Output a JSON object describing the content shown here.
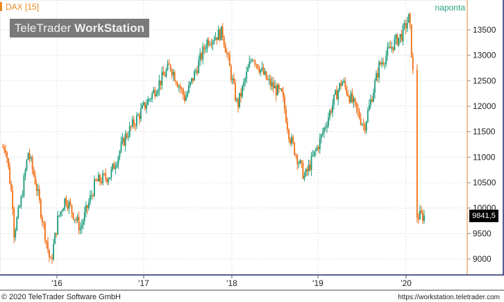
{
  "header": {
    "instrument": "DAX [15]",
    "period": "naponta",
    "logo_light": "TeleTrader ",
    "logo_bold": "WorkStation"
  },
  "footer": {
    "copyright": "© 2020 TeleTrader Software GmbH",
    "url": "https://workstation.teletrader.com"
  },
  "colors": {
    "up": "#1a9a7a",
    "down": "#f06a0f",
    "grid": "#c8c8c8",
    "axis_bg": "#ffffff",
    "last_badge": "#000000",
    "frame": "#1e2a6e"
  },
  "chart_data": {
    "type": "candlestick",
    "title": "DAX [15]",
    "frequency": "naponta",
    "y_axis": {
      "range": [
        8700,
        13900
      ],
      "ticks": [
        9000,
        9500,
        10000,
        10500,
        11000,
        11500,
        12000,
        12500,
        13000,
        13500
      ],
      "position": "right"
    },
    "x_axis": {
      "ticks": [
        "'16",
        "'17",
        "'18",
        "'19",
        "'20"
      ]
    },
    "grid": true,
    "last_value": "9841,5",
    "series": [
      {
        "points": [
          {
            "x": "2015-08",
            "y": 11200
          },
          {
            "x": "2015-09",
            "y": 10000
          },
          {
            "x": "2015-09",
            "y": 9450
          },
          {
            "x": "2015-10",
            "y": 10100
          },
          {
            "x": "2015-11",
            "y": 11100
          },
          {
            "x": "2015-12",
            "y": 10500
          },
          {
            "x": "2016-02",
            "y": 8900
          },
          {
            "x": "2016-03",
            "y": 9800
          },
          {
            "x": "2016-04",
            "y": 10200
          },
          {
            "x": "2016-06",
            "y": 9600
          },
          {
            "x": "2016-08",
            "y": 10500
          },
          {
            "x": "2016-10",
            "y": 10650
          },
          {
            "x": "2016-12",
            "y": 11400
          },
          {
            "x": "2017-03",
            "y": 12100
          },
          {
            "x": "2017-06",
            "y": 12800
          },
          {
            "x": "2017-08",
            "y": 12150
          },
          {
            "x": "2017-11",
            "y": 13300
          },
          {
            "x": "2018-01",
            "y": 13450
          },
          {
            "x": "2018-03",
            "y": 12000
          },
          {
            "x": "2018-05",
            "y": 13000
          },
          {
            "x": "2018-07",
            "y": 12500
          },
          {
            "x": "2018-09",
            "y": 12200
          },
          {
            "x": "2018-10",
            "y": 11400
          },
          {
            "x": "2018-12",
            "y": 10600
          },
          {
            "x": "2019-02",
            "y": 11300
          },
          {
            "x": "2019-04",
            "y": 12150
          },
          {
            "x": "2019-05",
            "y": 12500
          },
          {
            "x": "2019-08",
            "y": 11600
          },
          {
            "x": "2019-10",
            "y": 12800
          },
          {
            "x": "2019-12",
            "y": 13250
          },
          {
            "x": "2020-01",
            "y": 13400
          },
          {
            "x": "2020-02",
            "y": 13750
          },
          {
            "x": "2020-03",
            "y": 11500
          },
          {
            "x": "2020-03",
            "y": 9841.5
          }
        ]
      }
    ]
  }
}
